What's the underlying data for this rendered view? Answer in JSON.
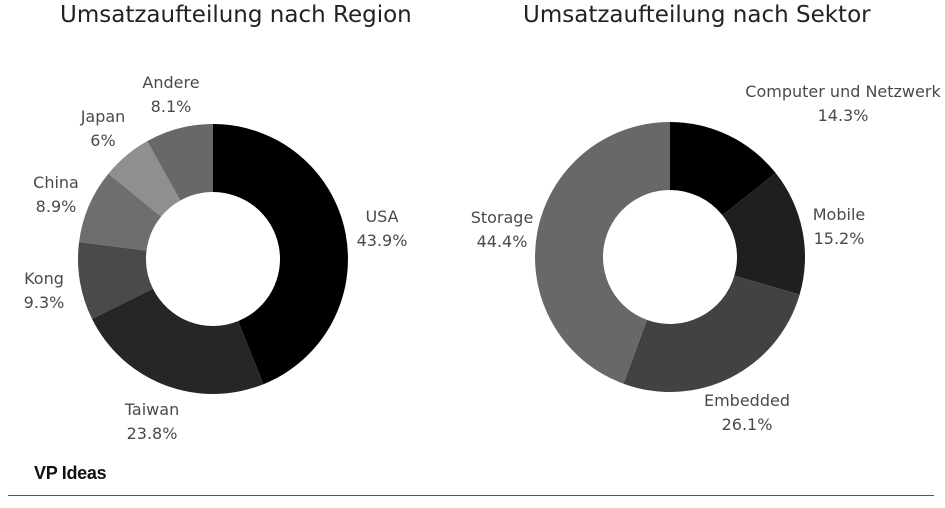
{
  "chart_data": [
    {
      "type": "pie",
      "title": "Umsatzaufteilung nach Region",
      "donut": true,
      "slices": [
        {
          "label": "USA",
          "value": 43.9,
          "display": "43.9%",
          "color": "#000000"
        },
        {
          "label": "Taiwan",
          "value": 23.8,
          "display": "23.8%",
          "color": "#262626"
        },
        {
          "label": "Kong",
          "value": 9.3,
          "display": "9.3%",
          "color": "#4a4a4a"
        },
        {
          "label": "China",
          "value": 8.9,
          "display": "8.9%",
          "color": "#6e6e6e"
        },
        {
          "label": "Japan",
          "value": 6,
          "display": "6%",
          "color": "#8f8f8f"
        },
        {
          "label": "Andere",
          "value": 8.1,
          "display": "8.1%",
          "color": "#686868"
        }
      ]
    },
    {
      "type": "pie",
      "title": "Umsatzaufteilung nach Sektor",
      "donut": true,
      "slices": [
        {
          "label": "Computer und Netzwerk",
          "value": 14.3,
          "display": "14.3%",
          "color": "#000000"
        },
        {
          "label": "Mobile",
          "value": 15.2,
          "display": "15.2%",
          "color": "#1f1f1f"
        },
        {
          "label": "Embedded",
          "value": 26.1,
          "display": "26.1%",
          "color": "#424242"
        },
        {
          "label": "Storage",
          "value": 44.4,
          "display": "44.4%",
          "color": "#686868"
        }
      ]
    }
  ],
  "footer": {
    "brand": "VP Ideas"
  }
}
